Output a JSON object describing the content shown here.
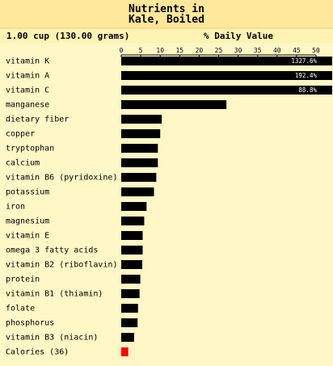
{
  "chart_data": {
    "type": "bar",
    "orientation": "horizontal",
    "title": "Nutrients in Kale, Boiled",
    "title_lines": [
      "Nutrients in",
      "Kale, Boiled"
    ],
    "serving": "1.00 cup (130.00 grams)",
    "axis_title": "% Daily Value",
    "xlim": [
      0,
      50
    ],
    "xticks": [
      0,
      5,
      10,
      15,
      20,
      25,
      30,
      35,
      40,
      45,
      50
    ],
    "grid": false,
    "legend": "none",
    "categories": [
      "vitamin K",
      "vitamin A",
      "vitamin C",
      "manganese",
      "dietary fiber",
      "copper",
      "tryptophan",
      "calcium",
      "vitamin B6 (pyridoxine)",
      "potassium",
      "iron",
      "magnesium",
      "vitamin E",
      "omega 3 fatty acids",
      "vitamin B2 (riboflavin)",
      "protein",
      "vitamin B1 (thiamin)",
      "folate",
      "phosphorus",
      "vitamin B3 (niacin)",
      "Calories (36)"
    ],
    "values": [
      1327.6,
      192.4,
      88.8,
      27.0,
      10.4,
      10.0,
      9.4,
      9.4,
      9.0,
      8.4,
      6.5,
      5.9,
      5.5,
      5.5,
      5.4,
      4.9,
      4.7,
      4.3,
      4.2,
      3.3,
      1.8
    ],
    "value_labels": [
      "1327.6%",
      "192.4%",
      "88.8%",
      "",
      "",
      "",
      "",
      "",
      "",
      "",
      "",
      "",
      "",
      "",
      "",
      "",
      "",
      "",
      "",
      "",
      ""
    ],
    "colors": {
      "bar": "#000000",
      "calories_bar": "#ff0000",
      "title_bg": "#ffe79c",
      "header_bg": "#fff3b4",
      "plot_bg": "#fff7c6",
      "text": "#000000",
      "value_text": "#ffffff"
    }
  }
}
